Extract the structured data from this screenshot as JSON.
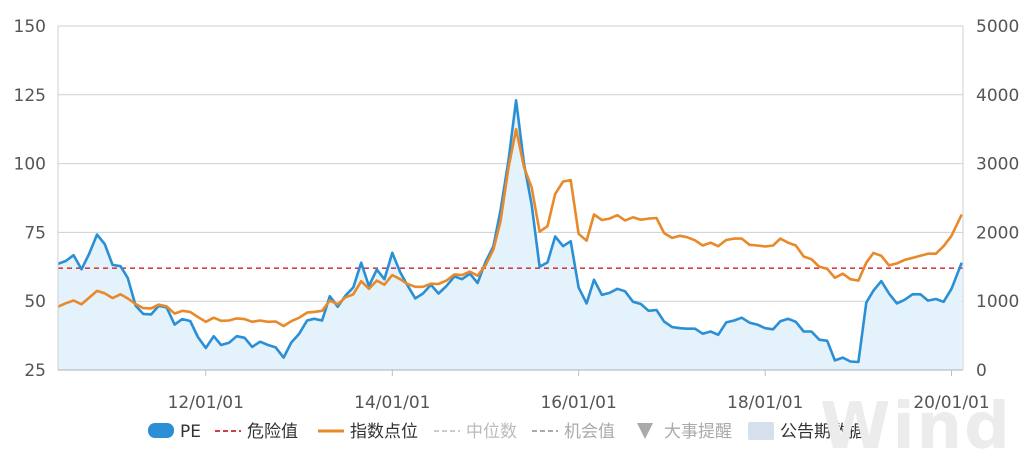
{
  "chart_data": {
    "type": "line",
    "x_start": "2010-06-01",
    "x_end": "2020-02-15",
    "x_ticks": [
      {
        "date": "2012-01-01",
        "label": "12/01/01"
      },
      {
        "date": "2014-01-01",
        "label": "14/01/01"
      },
      {
        "date": "2016-01-01",
        "label": "16/01/01"
      },
      {
        "date": "2018-01-01",
        "label": "18/01/01"
      },
      {
        "date": "2020-01-01",
        "label": "20/01/01"
      }
    ],
    "y_left": {
      "min": 25,
      "max": 150,
      "ticks": [
        "150",
        "125",
        "100",
        "75",
        "50",
        "25"
      ],
      "tick_values": [
        150,
        125,
        100,
        75,
        50,
        25
      ]
    },
    "y_right": {
      "min": 0,
      "max": 5000,
      "ticks": [
        "5000",
        "4000",
        "3000",
        "2000",
        "1000",
        "0"
      ],
      "tick_values": [
        5000,
        4000,
        3000,
        2000,
        1000,
        0
      ]
    },
    "grid": true,
    "legend_position": "bottom",
    "series": [
      {
        "name": "PE",
        "axis": "left",
        "kind": "area",
        "color": "#2b8fd6",
        "fill": "#e3f2fb",
        "points": [
          [
            "2010-06-01",
            63.6
          ],
          [
            "2010-07-01",
            64.6
          ],
          [
            "2010-08-01",
            66.7
          ],
          [
            "2010-09-01",
            61.6
          ],
          [
            "2010-10-01",
            67.2
          ],
          [
            "2010-11-01",
            74.2
          ],
          [
            "2010-12-01",
            70.8
          ],
          [
            "2011-01-01",
            63.2
          ],
          [
            "2011-02-01",
            62.7
          ],
          [
            "2011-03-01",
            58.5
          ],
          [
            "2011-04-01",
            48.4
          ],
          [
            "2011-05-01",
            45.4
          ],
          [
            "2011-06-01",
            45.2
          ],
          [
            "2011-07-01",
            48.4
          ],
          [
            "2011-08-01",
            47.7
          ],
          [
            "2011-09-01",
            41.5
          ],
          [
            "2011-10-01",
            43.5
          ],
          [
            "2011-11-01",
            42.8
          ],
          [
            "2011-12-01",
            37.0
          ],
          [
            "2012-01-01",
            33.0
          ],
          [
            "2012-02-01",
            37.3
          ],
          [
            "2012-03-01",
            34.1
          ],
          [
            "2012-04-01",
            34.9
          ],
          [
            "2012-05-01",
            37.3
          ],
          [
            "2012-06-01",
            36.7
          ],
          [
            "2012-07-01",
            33.4
          ],
          [
            "2012-08-01",
            35.3
          ],
          [
            "2012-09-01",
            34.1
          ],
          [
            "2012-10-01",
            33.2
          ],
          [
            "2012-11-01",
            29.5
          ],
          [
            "2012-12-01",
            35.0
          ],
          [
            "2013-01-01",
            38.2
          ],
          [
            "2013-02-01",
            43.0
          ],
          [
            "2013-03-01",
            43.6
          ],
          [
            "2013-04-01",
            43.0
          ],
          [
            "2013-05-01",
            51.8
          ],
          [
            "2013-06-01",
            48.0
          ],
          [
            "2013-07-01",
            52.0
          ],
          [
            "2013-08-01",
            55.0
          ],
          [
            "2013-09-01",
            64.0
          ],
          [
            "2013-10-01",
            55.5
          ],
          [
            "2013-11-01",
            61.5
          ],
          [
            "2013-12-01",
            58.0
          ],
          [
            "2014-01-01",
            67.6
          ],
          [
            "2014-02-01",
            60.5
          ],
          [
            "2014-03-01",
            55.8
          ],
          [
            "2014-04-01",
            51.0
          ],
          [
            "2014-05-01",
            52.8
          ],
          [
            "2014-06-01",
            56.0
          ],
          [
            "2014-07-01",
            52.8
          ],
          [
            "2014-08-01",
            55.5
          ],
          [
            "2014-09-01",
            59.0
          ],
          [
            "2014-10-01",
            58.0
          ],
          [
            "2014-11-01",
            60.0
          ],
          [
            "2014-12-01",
            56.6
          ],
          [
            "2015-01-01",
            64.2
          ],
          [
            "2015-02-01",
            70.0
          ],
          [
            "2015-03-01",
            83.0
          ],
          [
            "2015-04-01",
            101.2
          ],
          [
            "2015-05-01",
            123.0
          ],
          [
            "2015-06-01",
            100.0
          ],
          [
            "2015-07-01",
            85.0
          ],
          [
            "2015-08-01",
            62.5
          ],
          [
            "2015-09-01",
            64.1
          ],
          [
            "2015-10-01",
            73.5
          ],
          [
            "2015-11-01",
            70.0
          ],
          [
            "2015-12-01",
            71.8
          ],
          [
            "2016-01-01",
            55.0
          ],
          [
            "2016-02-01",
            49.2
          ],
          [
            "2016-03-01",
            57.8
          ],
          [
            "2016-04-01",
            52.3
          ],
          [
            "2016-05-01",
            53.0
          ],
          [
            "2016-06-01",
            54.5
          ],
          [
            "2016-07-01",
            53.6
          ],
          [
            "2016-08-01",
            49.8
          ],
          [
            "2016-09-01",
            49.0
          ],
          [
            "2016-10-01",
            46.5
          ],
          [
            "2016-11-01",
            46.8
          ],
          [
            "2016-12-01",
            42.6
          ],
          [
            "2017-01-01",
            40.6
          ],
          [
            "2017-02-01",
            40.2
          ],
          [
            "2017-03-01",
            40.0
          ],
          [
            "2017-04-01",
            40.0
          ],
          [
            "2017-05-01",
            38.2
          ],
          [
            "2017-06-01",
            39.0
          ],
          [
            "2017-07-01",
            37.8
          ],
          [
            "2017-08-01",
            42.3
          ],
          [
            "2017-09-01",
            43.0
          ],
          [
            "2017-10-01",
            44.0
          ],
          [
            "2017-11-01",
            42.2
          ],
          [
            "2017-12-01",
            41.5
          ],
          [
            "2018-01-01",
            40.2
          ],
          [
            "2018-02-01",
            39.8
          ],
          [
            "2018-03-01",
            42.7
          ],
          [
            "2018-04-01",
            43.6
          ],
          [
            "2018-05-01",
            42.5
          ],
          [
            "2018-06-01",
            39.0
          ],
          [
            "2018-07-01",
            39.0
          ],
          [
            "2018-08-01",
            36.0
          ],
          [
            "2018-09-01",
            35.6
          ],
          [
            "2018-10-01",
            28.5
          ],
          [
            "2018-11-01",
            29.5
          ],
          [
            "2018-12-01",
            28.1
          ],
          [
            "2019-01-01",
            27.9
          ],
          [
            "2019-02-01",
            49.5
          ],
          [
            "2019-03-01",
            53.8
          ],
          [
            "2019-04-01",
            57.3
          ],
          [
            "2019-05-01",
            52.8
          ],
          [
            "2019-06-01",
            49.2
          ],
          [
            "2019-07-01",
            50.5
          ],
          [
            "2019-08-01",
            52.5
          ],
          [
            "2019-09-01",
            52.5
          ],
          [
            "2019-10-01",
            50.2
          ],
          [
            "2019-11-01",
            50.8
          ],
          [
            "2019-12-01",
            49.8
          ],
          [
            "2020-01-01",
            54.5
          ],
          [
            "2020-02-10",
            64.0
          ]
        ]
      },
      {
        "name": "危险值",
        "axis": "left",
        "kind": "dashed",
        "color": "#d0404a",
        "value": 62
      },
      {
        "name": "指数点位",
        "axis": "right",
        "kind": "line",
        "color": "#e8892a",
        "points": [
          [
            "2010-06-01",
            920
          ],
          [
            "2010-07-01",
            970
          ],
          [
            "2010-08-01",
            1010
          ],
          [
            "2010-09-01",
            955
          ],
          [
            "2010-10-01",
            1050
          ],
          [
            "2010-11-01",
            1150
          ],
          [
            "2010-12-01",
            1115
          ],
          [
            "2011-01-01",
            1045
          ],
          [
            "2011-02-01",
            1100
          ],
          [
            "2011-03-01",
            1040
          ],
          [
            "2011-04-01",
            960
          ],
          [
            "2011-05-01",
            900
          ],
          [
            "2011-06-01",
            895
          ],
          [
            "2011-07-01",
            950
          ],
          [
            "2011-08-01",
            925
          ],
          [
            "2011-09-01",
            820
          ],
          [
            "2011-10-01",
            860
          ],
          [
            "2011-11-01",
            845
          ],
          [
            "2011-12-01",
            770
          ],
          [
            "2012-01-01",
            700
          ],
          [
            "2012-02-01",
            760
          ],
          [
            "2012-03-01",
            715
          ],
          [
            "2012-04-01",
            720
          ],
          [
            "2012-05-01",
            750
          ],
          [
            "2012-06-01",
            740
          ],
          [
            "2012-07-01",
            700
          ],
          [
            "2012-08-01",
            720
          ],
          [
            "2012-09-01",
            700
          ],
          [
            "2012-10-01",
            705
          ],
          [
            "2012-11-01",
            640
          ],
          [
            "2012-12-01",
            710
          ],
          [
            "2013-01-01",
            760
          ],
          [
            "2013-02-01",
            835
          ],
          [
            "2013-03-01",
            845
          ],
          [
            "2013-04-01",
            860
          ],
          [
            "2013-05-01",
            1010
          ],
          [
            "2013-06-01",
            955
          ],
          [
            "2013-07-01",
            1055
          ],
          [
            "2013-08-01",
            1100
          ],
          [
            "2013-09-01",
            1290
          ],
          [
            "2013-10-01",
            1180
          ],
          [
            "2013-11-01",
            1300
          ],
          [
            "2013-12-01",
            1240
          ],
          [
            "2014-01-01",
            1380
          ],
          [
            "2014-02-01",
            1320
          ],
          [
            "2014-03-01",
            1250
          ],
          [
            "2014-04-01",
            1210
          ],
          [
            "2014-05-01",
            1210
          ],
          [
            "2014-06-01",
            1255
          ],
          [
            "2014-07-01",
            1250
          ],
          [
            "2014-08-01",
            1300
          ],
          [
            "2014-09-01",
            1390
          ],
          [
            "2014-10-01",
            1380
          ],
          [
            "2014-11-01",
            1430
          ],
          [
            "2014-12-01",
            1370
          ],
          [
            "2015-01-01",
            1520
          ],
          [
            "2015-02-01",
            1750
          ],
          [
            "2015-03-01",
            2160
          ],
          [
            "2015-04-01",
            2940
          ],
          [
            "2015-05-01",
            3500
          ],
          [
            "2015-06-01",
            2950
          ],
          [
            "2015-07-01",
            2650
          ],
          [
            "2015-08-01",
            2010
          ],
          [
            "2015-09-01",
            2090
          ],
          [
            "2015-10-01",
            2560
          ],
          [
            "2015-11-01",
            2740
          ],
          [
            "2015-12-01",
            2760
          ],
          [
            "2016-01-01",
            1980
          ],
          [
            "2016-02-01",
            1880
          ],
          [
            "2016-03-01",
            2260
          ],
          [
            "2016-04-01",
            2180
          ],
          [
            "2016-05-01",
            2200
          ],
          [
            "2016-06-01",
            2250
          ],
          [
            "2016-07-01",
            2175
          ],
          [
            "2016-08-01",
            2220
          ],
          [
            "2016-09-01",
            2185
          ],
          [
            "2016-10-01",
            2200
          ],
          [
            "2016-11-01",
            2210
          ],
          [
            "2016-12-01",
            1990
          ],
          [
            "2017-01-01",
            1920
          ],
          [
            "2017-02-01",
            1950
          ],
          [
            "2017-03-01",
            1930
          ],
          [
            "2017-04-01",
            1885
          ],
          [
            "2017-05-01",
            1810
          ],
          [
            "2017-06-01",
            1850
          ],
          [
            "2017-07-01",
            1800
          ],
          [
            "2017-08-01",
            1890
          ],
          [
            "2017-09-01",
            1910
          ],
          [
            "2017-10-01",
            1910
          ],
          [
            "2017-11-01",
            1820
          ],
          [
            "2017-12-01",
            1810
          ],
          [
            "2018-01-01",
            1795
          ],
          [
            "2018-02-01",
            1810
          ],
          [
            "2018-03-01",
            1910
          ],
          [
            "2018-04-01",
            1850
          ],
          [
            "2018-05-01",
            1810
          ],
          [
            "2018-06-01",
            1650
          ],
          [
            "2018-07-01",
            1610
          ],
          [
            "2018-08-01",
            1500
          ],
          [
            "2018-09-01",
            1470
          ],
          [
            "2018-10-01",
            1340
          ],
          [
            "2018-11-01",
            1400
          ],
          [
            "2018-12-01",
            1320
          ],
          [
            "2019-01-01",
            1300
          ],
          [
            "2019-02-01",
            1560
          ],
          [
            "2019-03-01",
            1700
          ],
          [
            "2019-04-01",
            1660
          ],
          [
            "2019-05-01",
            1520
          ],
          [
            "2019-06-01",
            1550
          ],
          [
            "2019-07-01",
            1600
          ],
          [
            "2019-08-01",
            1630
          ],
          [
            "2019-09-01",
            1660
          ],
          [
            "2019-10-01",
            1690
          ],
          [
            "2019-11-01",
            1690
          ],
          [
            "2019-12-01",
            1800
          ],
          [
            "2020-01-01",
            1950
          ],
          [
            "2020-02-10",
            2260
          ]
        ]
      }
    ]
  },
  "legend": [
    {
      "label": "PE",
      "marker": "pill",
      "color": "#2b8fd6",
      "text_color": "#333333"
    },
    {
      "label": "危险值",
      "marker": "dashed",
      "color": "#d0404a",
      "text_color": "#333333"
    },
    {
      "label": "指数点位",
      "marker": "line",
      "color": "#e8892a",
      "text_color": "#333333"
    },
    {
      "label": "中位数",
      "marker": "dashed",
      "color": "#cccccc",
      "text_color": "#bbbbbb"
    },
    {
      "label": "机会值",
      "marker": "dashed",
      "color": "#aaaaaa",
      "text_color": "#aaaaaa"
    },
    {
      "label": "大事提醒",
      "marker": "triangle",
      "color": "#aaaaaa",
      "text_color": "#aaaaaa"
    },
    {
      "label": "公告期数据",
      "marker": "box",
      "color": "#d6dfec",
      "text_color": "#333333"
    }
  ],
  "watermark": "Wind"
}
